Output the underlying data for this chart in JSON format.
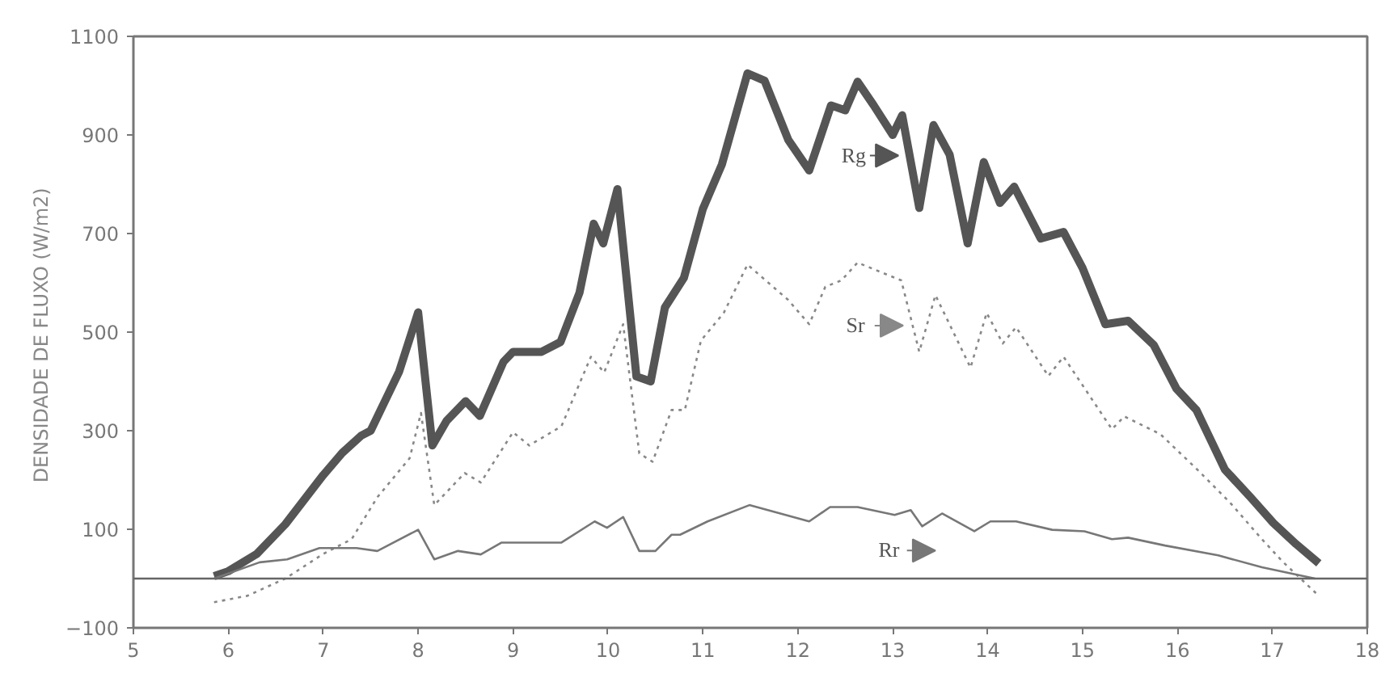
{
  "chart_data": {
    "type": "line",
    "ylabel": "DENSIDADE  DE FLUXO (W/m2)",
    "xlim": [
      5,
      18
    ],
    "xticks": [
      5,
      6,
      7,
      8,
      9,
      10,
      11,
      12,
      13,
      14,
      15,
      16,
      17,
      18
    ],
    "ylim": [
      -100,
      1100
    ],
    "yticks": [
      -100,
      100,
      300,
      500,
      700,
      900,
      1100
    ],
    "grid": false,
    "legend": "center",
    "ref_lines": [
      {
        "axis": "y",
        "value": 0,
        "color": "#666666"
      }
    ],
    "series": [
      {
        "name": "Rg",
        "color": "#555555",
        "line_style": "solid",
        "x": [
          5.85,
          6.0,
          6.3,
          6.6,
          7.0,
          7.2,
          7.4,
          7.5,
          7.8,
          8.0,
          8.15,
          8.3,
          8.5,
          8.65,
          8.9,
          9.0,
          9.3,
          9.5,
          9.7,
          9.85,
          9.95,
          10.1,
          10.3,
          10.45,
          10.6,
          10.8,
          11.0,
          11.2,
          11.47,
          11.65,
          11.9,
          12.12,
          12.35,
          12.5,
          12.63,
          12.8,
          13.0,
          13.1,
          13.28,
          13.43,
          13.6,
          13.79,
          13.96,
          14.13,
          14.28,
          14.56,
          14.8,
          15.0,
          15.24,
          15.48,
          15.75,
          15.99,
          16.2,
          16.5,
          16.77,
          17.01,
          17.25,
          17.49
        ],
        "values": [
          5,
          15,
          50,
          110,
          210,
          255,
          290,
          300,
          420,
          540,
          270,
          320,
          360,
          330,
          440,
          460,
          460,
          480,
          580,
          720,
          680,
          790,
          410,
          400,
          550,
          610,
          750,
          840,
          1025,
          1010,
          890,
          828,
          960,
          950,
          1008,
          960,
          900,
          940,
          752,
          920,
          860,
          680,
          845,
          762,
          795,
          690,
          703,
          630,
          516,
          523,
          474,
          385,
          342,
          221,
          165,
          113,
          70,
          31
        ]
      },
      {
        "name": "Sr",
        "color": "#888888",
        "line_style": "dotted",
        "x": [
          5.85,
          6.2,
          6.6,
          7.0,
          7.3,
          7.57,
          7.91,
          8.03,
          8.17,
          8.49,
          8.66,
          9.0,
          9.17,
          9.51,
          9.82,
          9.96,
          10.16,
          10.33,
          10.47,
          10.67,
          10.81,
          10.98,
          11.22,
          11.47,
          11.9,
          12.12,
          12.29,
          12.46,
          12.63,
          13.09,
          13.28,
          13.45,
          13.82,
          13.99,
          14.16,
          14.3,
          14.64,
          14.8,
          15.31,
          15.44,
          15.82,
          16.21,
          16.55,
          16.89,
          17.11,
          17.49
        ],
        "values": [
          -48,
          -35,
          0,
          50,
          80,
          165,
          244,
          336,
          149,
          214,
          195,
          297,
          270,
          309,
          450,
          418,
          516,
          254,
          237,
          342,
          342,
          483,
          539,
          637,
          565,
          516,
          592,
          605,
          641,
          605,
          460,
          575,
          428,
          539,
          477,
          510,
          411,
          450,
          303,
          329,
          293,
          221,
          155,
          80,
          34,
          -35
        ]
      },
      {
        "name": "Rr",
        "color": "#777777",
        "line_style": "solid",
        "x": [
          5.85,
          6.33,
          6.62,
          6.96,
          7.35,
          7.57,
          8.0,
          8.17,
          8.42,
          8.66,
          8.88,
          9.51,
          9.86,
          9.99,
          10.16,
          10.33,
          10.5,
          10.67,
          10.76,
          11.05,
          11.49,
          12.12,
          12.34,
          12.63,
          13.02,
          13.19,
          13.31,
          13.52,
          13.86,
          14.03,
          14.3,
          14.68,
          15.02,
          15.31,
          15.48,
          15.87,
          16.43,
          16.89,
          17.28,
          17.45
        ],
        "values": [
          0,
          33,
          39,
          62,
          62,
          56,
          99,
          39,
          56,
          49,
          73,
          73,
          116,
          103,
          125,
          56,
          56,
          89,
          89,
          116,
          149,
          116,
          145,
          145,
          129,
          139,
          106,
          132,
          96,
          116,
          116,
          99,
          96,
          80,
          83,
          67,
          47,
          23,
          7,
          0
        ]
      }
    ]
  }
}
